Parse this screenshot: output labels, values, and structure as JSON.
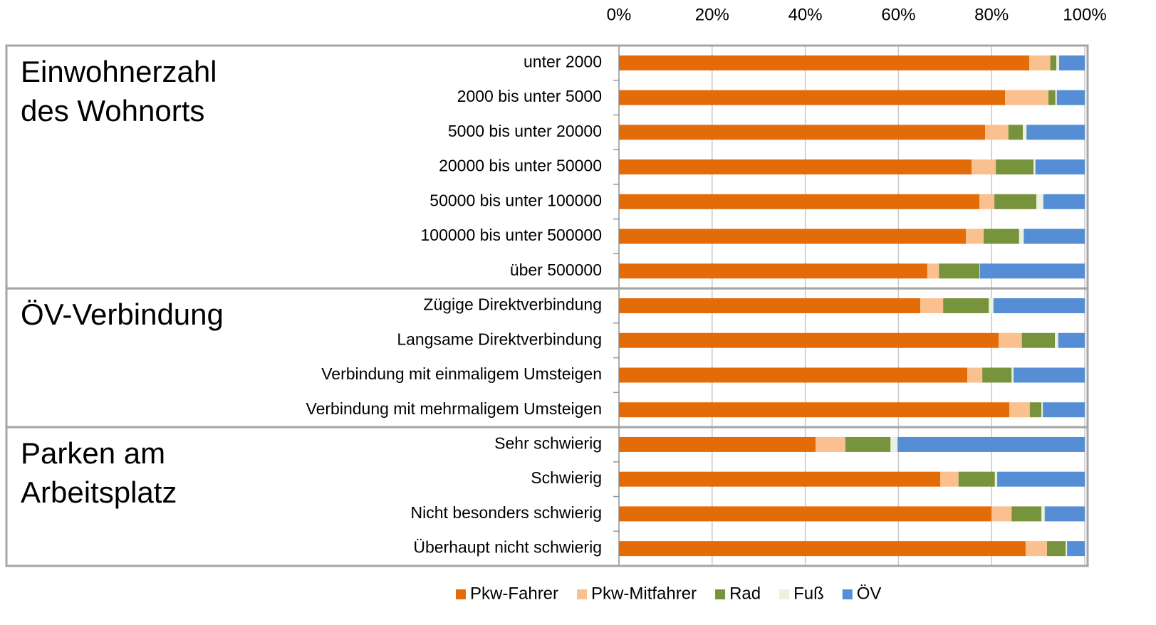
{
  "chart_data": {
    "type": "stacked_bar_horizontal",
    "groups": [
      {
        "label": [
          "Einwohnerzahl",
          "des Wohnorts"
        ],
        "categories": [
          "unter 2000",
          "2000 bis unter 5000",
          "5000 bis unter 20000",
          "20000 bis unter 50000",
          "50000 bis unter 100000",
          "100000 bis unter 500000",
          "über 500000"
        ]
      },
      {
        "label": [
          "ÖV-Verbindung"
        ],
        "categories": [
          "Zügige Direktverbindung",
          "Langsame Direktverbindung",
          "Verbindung mit einmaligem Umsteigen",
          "Verbindung mit mehrmaligem Umsteigen"
        ]
      },
      {
        "label": [
          "Parken am",
          "Arbeitsplatz"
        ],
        "categories": [
          "Sehr schwierig",
          "Schwierig",
          "Nicht besonders schwierig",
          "Überhaupt nicht schwierig"
        ]
      }
    ],
    "series": [
      {
        "name": "Pkw-Fahrer",
        "color": "#e36c09",
        "values": [
          88.1,
          82.9,
          78.6,
          75.7,
          77.4,
          74.5,
          66.2,
          64.7,
          81.5,
          74.8,
          83.8,
          42.2,
          69.0,
          80.0,
          87.3
        ]
      },
      {
        "name": "Pkw-Mitfahrer",
        "color": "#fac090",
        "values": [
          4.5,
          9.3,
          5.0,
          5.2,
          3.2,
          3.8,
          2.5,
          4.9,
          5.0,
          3.2,
          4.4,
          6.4,
          3.9,
          4.3,
          4.6
        ]
      },
      {
        "name": "Rad",
        "color": "#77933c",
        "values": [
          1.3,
          1.5,
          3.1,
          8.1,
          9.0,
          7.6,
          8.7,
          9.8,
          7.1,
          6.3,
          2.5,
          9.7,
          7.8,
          6.4,
          4.0
        ]
      },
      {
        "name": "Fuß",
        "color": "#ebf1de",
        "values": [
          0.6,
          0.3,
          0.8,
          0.4,
          1.5,
          1.0,
          0.1,
          1.0,
          0.7,
          0.4,
          0.3,
          1.5,
          0.5,
          0.7,
          0.3
        ]
      },
      {
        "name": "ÖV",
        "color": "#558ed5",
        "values": [
          5.5,
          6.0,
          12.5,
          10.6,
          8.9,
          13.1,
          22.5,
          19.6,
          5.7,
          15.3,
          9.0,
          40.2,
          18.8,
          8.6,
          3.8
        ]
      }
    ],
    "xlim": [
      0,
      100
    ],
    "xticks": [
      {
        "value": 0,
        "label": "0%"
      },
      {
        "value": 20,
        "label": "20%"
      },
      {
        "value": 40,
        "label": "40%"
      },
      {
        "value": 60,
        "label": "60%"
      },
      {
        "value": 80,
        "label": "80%"
      },
      {
        "value": 100,
        "label": "100%"
      }
    ],
    "grid": true
  }
}
